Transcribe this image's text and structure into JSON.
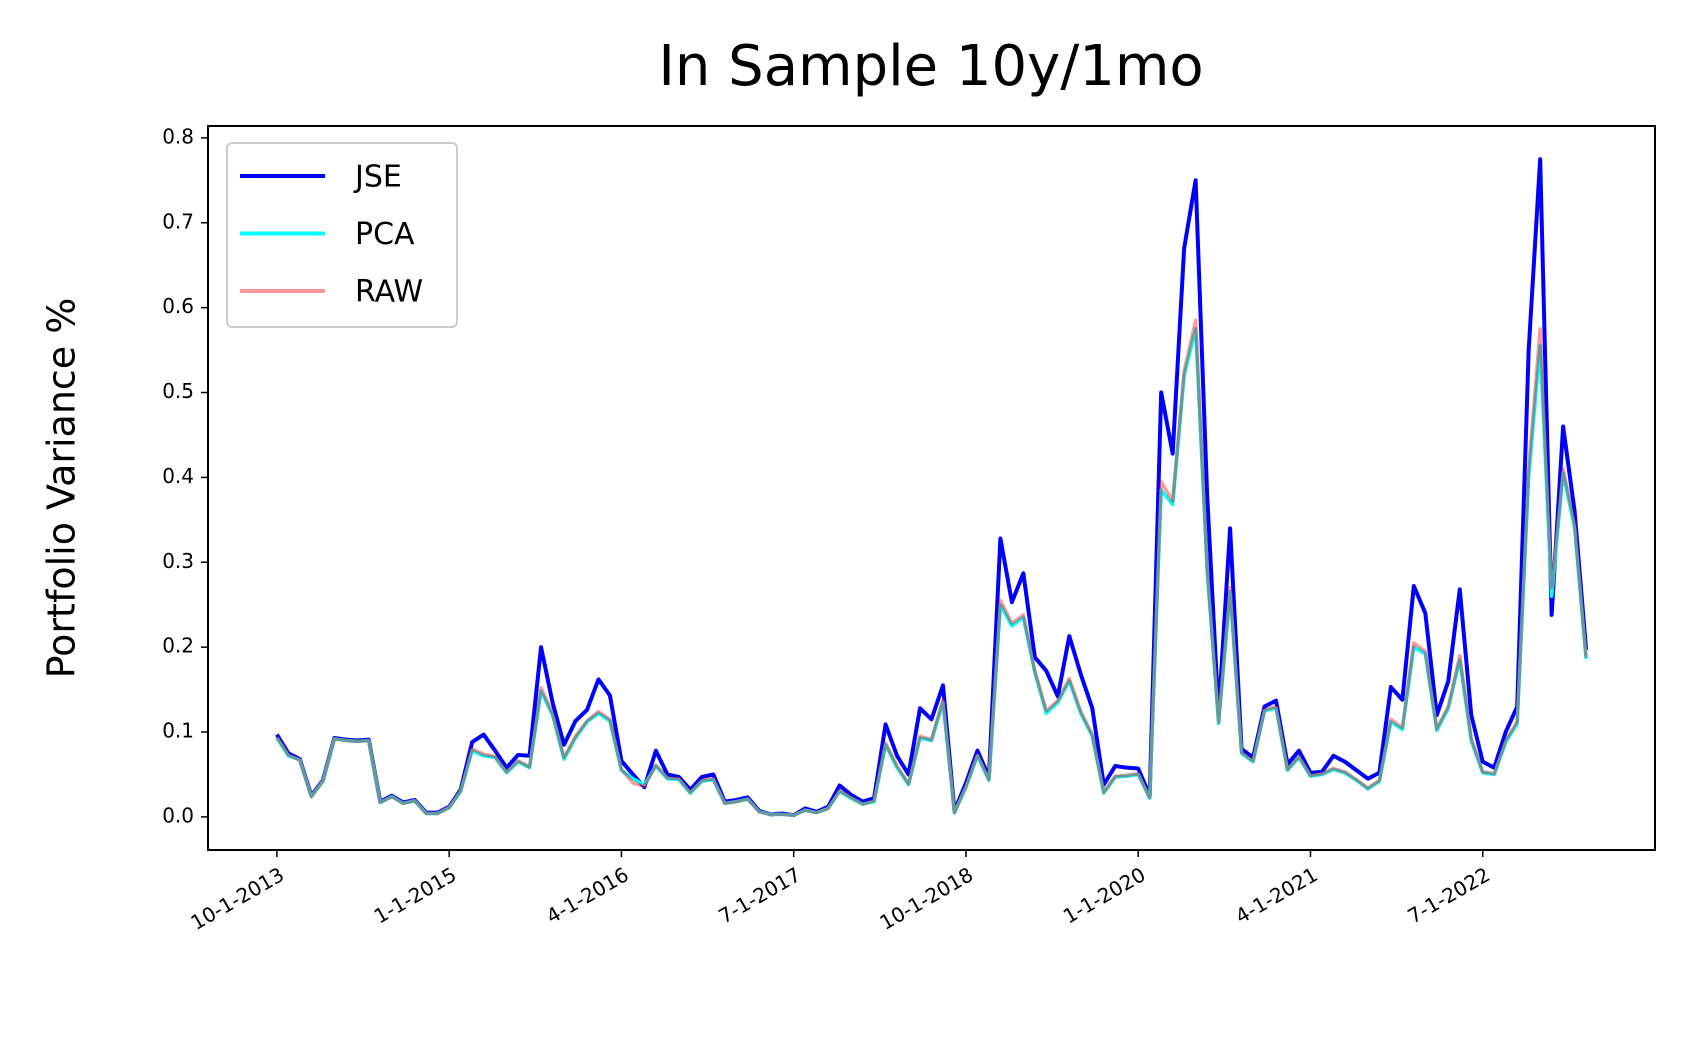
{
  "chart_data": {
    "type": "line",
    "title": "In Sample 10y/1mo",
    "ylabel": "Portfolio Variance %",
    "x": [
      "10-1-2013",
      "11-1-2013",
      "12-1-2013",
      "1-1-2014",
      "2-1-2014",
      "3-1-2014",
      "4-1-2014",
      "5-1-2014",
      "6-1-2014",
      "7-1-2014",
      "8-1-2014",
      "9-1-2014",
      "10-1-2014",
      "11-1-2014",
      "12-1-2014",
      "1-1-2015",
      "2-1-2015",
      "3-1-2015",
      "4-1-2015",
      "5-1-2015",
      "6-1-2015",
      "7-1-2015",
      "8-1-2015",
      "9-1-2015",
      "10-1-2015",
      "11-1-2015",
      "12-1-2015",
      "1-1-2016",
      "2-1-2016",
      "3-1-2016",
      "4-1-2016",
      "5-1-2016",
      "6-1-2016",
      "7-1-2016",
      "8-1-2016",
      "9-1-2016",
      "10-1-2016",
      "11-1-2016",
      "12-1-2016",
      "1-1-2017",
      "2-1-2017",
      "3-1-2017",
      "4-1-2017",
      "5-1-2017",
      "6-1-2017",
      "7-1-2017",
      "8-1-2017",
      "9-1-2017",
      "10-1-2017",
      "11-1-2017",
      "12-1-2017",
      "1-1-2018",
      "2-1-2018",
      "3-1-2018",
      "4-1-2018",
      "5-1-2018",
      "6-1-2018",
      "7-1-2018",
      "8-1-2018",
      "9-1-2018",
      "10-1-2018",
      "11-1-2018",
      "12-1-2018",
      "1-1-2019",
      "2-1-2019",
      "3-1-2019",
      "4-1-2019",
      "5-1-2019",
      "6-1-2019",
      "7-1-2019",
      "8-1-2019",
      "9-1-2019",
      "10-1-2019",
      "11-1-2019",
      "12-1-2019",
      "1-1-2020",
      "2-1-2020",
      "3-1-2020",
      "4-1-2020",
      "5-1-2020",
      "6-1-2020",
      "7-1-2020",
      "8-1-2020",
      "9-1-2020",
      "10-1-2020",
      "11-1-2020",
      "12-1-2020",
      "1-1-2021",
      "2-1-2021",
      "3-1-2021",
      "4-1-2021",
      "5-1-2021",
      "6-1-2021",
      "7-1-2021",
      "8-1-2021",
      "9-1-2021",
      "10-1-2021",
      "11-1-2021",
      "12-1-2021",
      "1-1-2022",
      "2-1-2022",
      "3-1-2022",
      "4-1-2022",
      "5-1-2022",
      "6-1-2022",
      "7-1-2022",
      "8-1-2022",
      "9-1-2022",
      "10-1-2022",
      "11-1-2022",
      "12-1-2022",
      "1-1-2023",
      "2-1-2023",
      "3-1-2023",
      "4-1-2023"
    ],
    "series": [
      {
        "name": "JSE",
        "color": "#0000ff",
        "values": [
          0.097,
          0.075,
          0.068,
          0.025,
          0.043,
          0.093,
          0.091,
          0.09,
          0.091,
          0.018,
          0.025,
          0.017,
          0.02,
          0.005,
          0.005,
          0.012,
          0.032,
          0.088,
          0.097,
          0.078,
          0.058,
          0.073,
          0.072,
          0.2,
          0.135,
          0.085,
          0.113,
          0.126,
          0.162,
          0.143,
          0.066,
          0.05,
          0.035,
          0.078,
          0.05,
          0.047,
          0.032,
          0.047,
          0.05,
          0.018,
          0.02,
          0.023,
          0.007,
          0.003,
          0.004,
          0.002,
          0.01,
          0.006,
          0.012,
          0.037,
          0.026,
          0.018,
          0.022,
          0.109,
          0.072,
          0.05,
          0.128,
          0.115,
          0.155,
          0.007,
          0.04,
          0.078,
          0.047,
          0.328,
          0.253,
          0.287,
          0.188,
          0.172,
          0.142,
          0.213,
          0.168,
          0.128,
          0.038,
          0.06,
          0.058,
          0.057,
          0.025,
          0.5,
          0.428,
          0.67,
          0.75,
          0.38,
          0.12,
          0.34,
          0.08,
          0.07,
          0.13,
          0.137,
          0.062,
          0.078,
          0.052,
          0.053,
          0.072,
          0.065,
          0.055,
          0.045,
          0.052,
          0.153,
          0.138,
          0.272,
          0.24,
          0.12,
          0.16,
          0.268,
          0.12,
          0.065,
          0.058,
          0.1,
          0.13,
          0.55,
          0.775,
          0.238,
          0.46,
          0.36,
          0.197
        ]
      },
      {
        "name": "PCA",
        "color": "#00ffff",
        "values": [
          0.093,
          0.072,
          0.067,
          0.024,
          0.042,
          0.092,
          0.09,
          0.089,
          0.09,
          0.017,
          0.024,
          0.016,
          0.019,
          0.004,
          0.004,
          0.011,
          0.03,
          0.078,
          0.072,
          0.07,
          0.052,
          0.065,
          0.058,
          0.148,
          0.12,
          0.068,
          0.093,
          0.112,
          0.122,
          0.113,
          0.055,
          0.045,
          0.038,
          0.06,
          0.045,
          0.044,
          0.028,
          0.042,
          0.044,
          0.016,
          0.018,
          0.021,
          0.006,
          0.003,
          0.003,
          0.002,
          0.008,
          0.005,
          0.01,
          0.03,
          0.022,
          0.015,
          0.018,
          0.085,
          0.058,
          0.038,
          0.093,
          0.09,
          0.135,
          0.005,
          0.035,
          0.072,
          0.043,
          0.25,
          0.225,
          0.235,
          0.17,
          0.122,
          0.135,
          0.16,
          0.122,
          0.095,
          0.028,
          0.047,
          0.048,
          0.05,
          0.022,
          0.385,
          0.368,
          0.52,
          0.575,
          0.29,
          0.11,
          0.265,
          0.075,
          0.065,
          0.125,
          0.128,
          0.055,
          0.07,
          0.048,
          0.05,
          0.056,
          0.052,
          0.043,
          0.033,
          0.042,
          0.112,
          0.103,
          0.2,
          0.192,
          0.102,
          0.128,
          0.185,
          0.09,
          0.052,
          0.05,
          0.088,
          0.11,
          0.4,
          0.555,
          0.26,
          0.405,
          0.34,
          0.186
        ]
      },
      {
        "name": "RAW",
        "color": "#ff0000",
        "values": [
          0.094,
          0.073,
          0.067,
          0.024,
          0.042,
          0.092,
          0.09,
          0.089,
          0.09,
          0.017,
          0.024,
          0.016,
          0.019,
          0.004,
          0.004,
          0.011,
          0.031,
          0.08,
          0.074,
          0.071,
          0.053,
          0.066,
          0.059,
          0.152,
          0.122,
          0.07,
          0.095,
          0.113,
          0.124,
          0.115,
          0.056,
          0.04,
          0.036,
          0.061,
          0.046,
          0.045,
          0.029,
          0.043,
          0.045,
          0.016,
          0.018,
          0.021,
          0.006,
          0.003,
          0.003,
          0.002,
          0.008,
          0.005,
          0.01,
          0.031,
          0.023,
          0.015,
          0.019,
          0.087,
          0.06,
          0.039,
          0.095,
          0.091,
          0.138,
          0.005,
          0.036,
          0.073,
          0.044,
          0.255,
          0.228,
          0.238,
          0.172,
          0.125,
          0.137,
          0.163,
          0.124,
          0.097,
          0.029,
          0.048,
          0.049,
          0.051,
          0.023,
          0.395,
          0.372,
          0.525,
          0.585,
          0.295,
          0.112,
          0.27,
          0.076,
          0.066,
          0.126,
          0.13,
          0.056,
          0.071,
          0.049,
          0.051,
          0.057,
          0.053,
          0.044,
          0.034,
          0.043,
          0.115,
          0.105,
          0.205,
          0.195,
          0.104,
          0.13,
          0.19,
          0.092,
          0.053,
          0.051,
          0.09,
          0.112,
          0.41,
          0.575,
          0.27,
          0.41,
          0.345,
          0.188
        ]
      }
    ],
    "xlim": [
      "4-1-2013",
      "10-1-2023"
    ],
    "xticks": [
      "10-1-2013",
      "1-1-2015",
      "4-1-2016",
      "7-1-2017",
      "10-1-2018",
      "1-1-2020",
      "4-1-2021",
      "7-1-2022"
    ],
    "ylim": [
      -0.039,
      0.814
    ],
    "yticks": [
      {
        "value": 0,
        "label": "0.0"
      },
      0.1,
      0.2,
      0.3,
      0.4,
      0.5,
      0.6,
      0.7,
      0.8
    ],
    "legend": "upper left"
  }
}
